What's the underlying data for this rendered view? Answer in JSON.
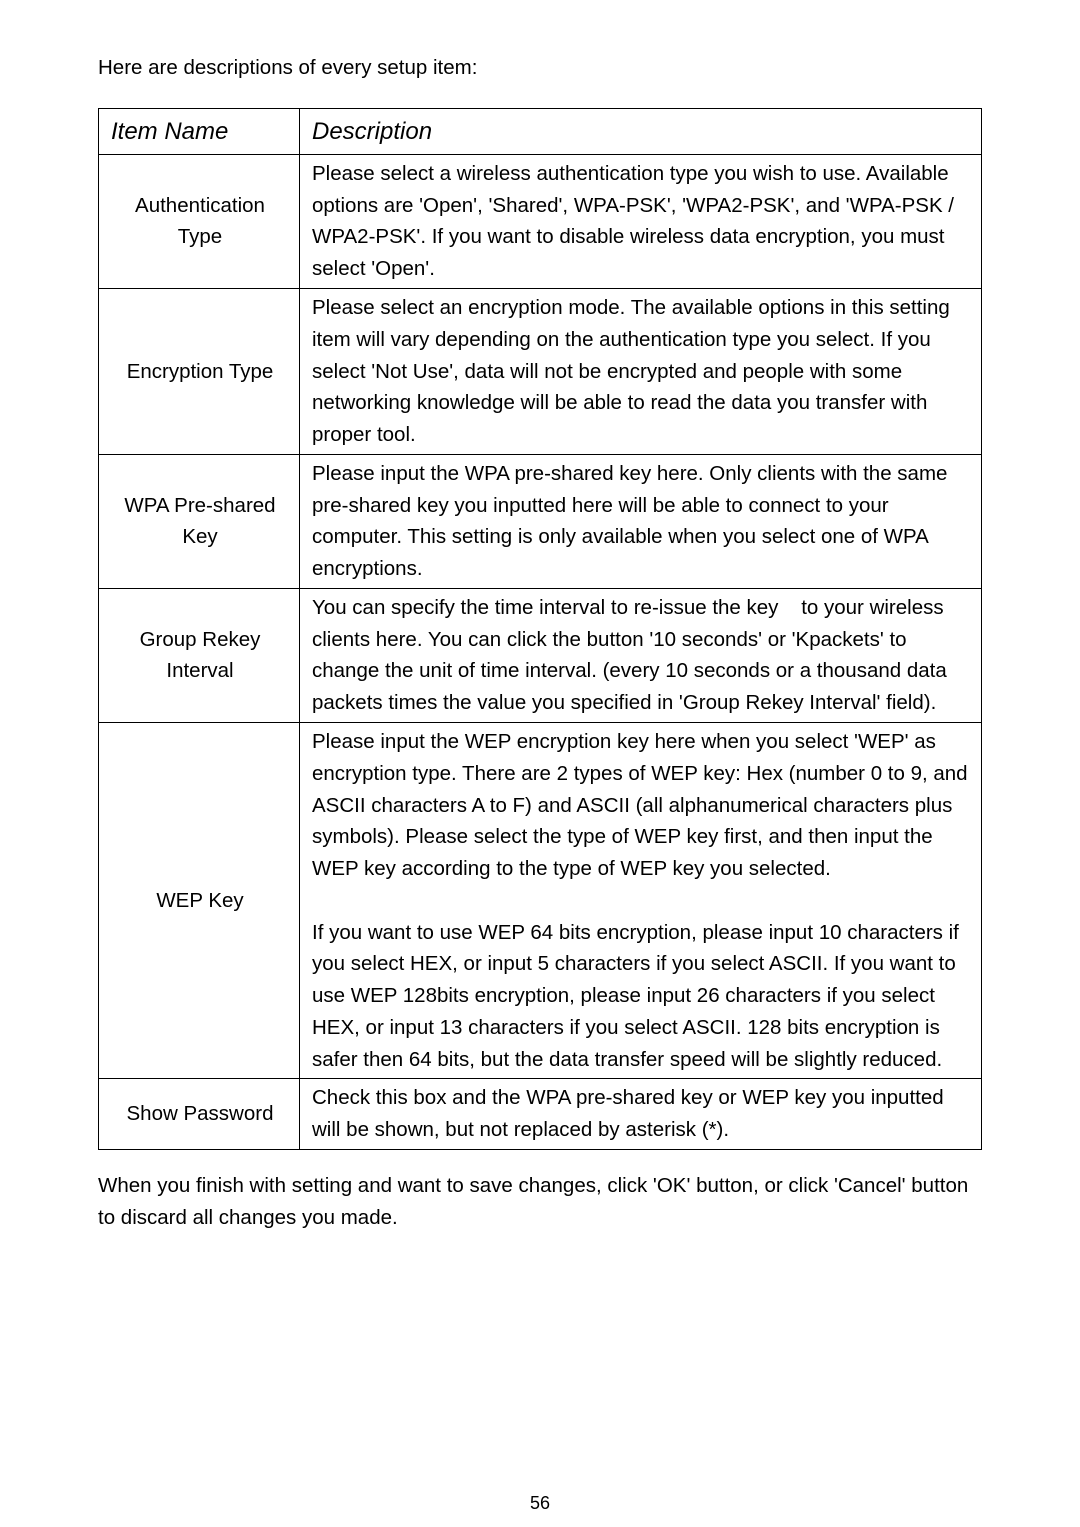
{
  "intro_text": "Here are descriptions of every setup item:",
  "table": {
    "header_item": "Item Name",
    "header_desc": "Description",
    "rows": [
      {
        "name": "Authentication Type",
        "desc": "Please select a wireless authentication type you wish to use. Available options are 'Open', 'Shared', WPA-PSK', 'WPA2-PSK', and 'WPA-PSK / WPA2-PSK'. If you want to disable wireless data encryption, you must select 'Open'."
      },
      {
        "name": "Encryption Type",
        "desc": "Please select an encryption mode. The available options in this setting item will vary depending on the authentication type you select. If you select 'Not Use', data will not be encrypted and people with some networking knowledge will be able to read the data you transfer with proper tool."
      },
      {
        "name": "WPA Pre-shared Key",
        "desc": "Please input the WPA pre-shared key here. Only clients with the same pre-shared key you inputted here will be able to connect to your computer. This setting is only available when you select one of WPA encryptions."
      },
      {
        "name": "Group Rekey Interval",
        "desc": "You can specify the time interval to re-issue the key    to your wireless clients here. You can click the button '10 seconds' or 'Kpackets' to change the unit of time interval. (every 10 seconds or a thousand data packets times the value you specified in 'Group Rekey Interval' field)."
      },
      {
        "name": "WEP Key",
        "desc": "Please input the WEP encryption key here when you select 'WEP' as encryption type. There are 2 types of WEP key: Hex (number 0 to 9, and ASCII characters A to F) and ASCII (all alphanumerical characters plus symbols). Please select the type of WEP key first, and then input the WEP key according to the type of WEP key you selected.\n\nIf you want to use WEP 64 bits encryption, please input 10 characters if you select HEX, or input 5 characters if you select ASCII. If you want to use WEP 128bits encryption, please input 26 characters if you select HEX, or input 13 characters if you select ASCII. 128 bits encryption is safer then 64 bits, but the data transfer speed will be slightly reduced."
      },
      {
        "name": "Show Password",
        "desc": "Check this box and the WPA pre-shared key or WEP key you inputted will be shown, but not replaced by asterisk (*)."
      }
    ]
  },
  "closing_text": "When you finish with setting and want to save changes, click 'OK' button, or click 'Cancel' button to discard all changes you made.",
  "page_number": "56"
}
